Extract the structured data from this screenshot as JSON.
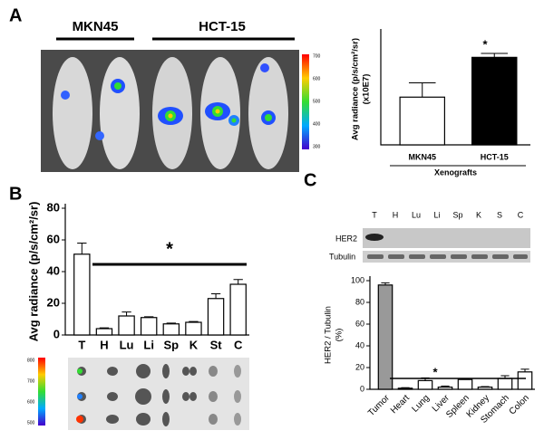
{
  "figure": {
    "panels": [
      "A",
      "B",
      "C"
    ],
    "mouse_groups": [
      "MKN45",
      "HCT-15"
    ],
    "mouse_colorbar": [
      "700",
      "600",
      "500",
      "400",
      "300"
    ],
    "organ_colorbar": [
      "800",
      "700",
      "600",
      "500"
    ],
    "blot_lanes": [
      "T",
      "H",
      "Lu",
      "Li",
      "Sp",
      "K",
      "S",
      "C"
    ],
    "blot_rows": [
      "HER2",
      "Tubulin"
    ]
  },
  "chart_data": [
    {
      "type": "bar",
      "categories": [
        "MKN45",
        "HCT-15"
      ],
      "values": [
        3,
        5.5
      ],
      "errors": [
        0.9,
        0.25
      ],
      "colors": [
        "#ffffff",
        "#000000"
      ],
      "ylim": [
        0,
        7
      ],
      "y_label": "Avg radiance (p/s/cm²/sr)",
      "y_label_unit": "(x10E7)",
      "x_label": "Xenografts",
      "annotation": "*"
    },
    {
      "type": "bar",
      "categories": [
        "T",
        "H",
        "Lu",
        "Li",
        "Sp",
        "K",
        "St",
        "C"
      ],
      "values": [
        51,
        4,
        12,
        11,
        7,
        8,
        23,
        32
      ],
      "errors": [
        7,
        0.5,
        2.5,
        0.5,
        0.5,
        0.5,
        3,
        3
      ],
      "colors": [
        "#ffffff",
        "#ffffff",
        "#ffffff",
        "#ffffff",
        "#ffffff",
        "#ffffff",
        "#ffffff",
        "#ffffff"
      ],
      "ylim": [
        0,
        80
      ],
      "yticks": [
        0,
        20,
        40,
        60,
        80
      ],
      "y_label": "Avg radiance (p/s/cm²/sr)",
      "annotation": "*"
    },
    {
      "type": "bar",
      "categories": [
        "Tumor",
        "Heart",
        "Lung",
        "Liver",
        "Spleen",
        "Kidney",
        "Stomach",
        "Colon"
      ],
      "values": [
        96,
        1,
        8,
        2,
        9,
        2,
        10,
        16
      ],
      "errors": [
        2,
        0.5,
        2.5,
        1,
        0,
        0.5,
        2.5,
        2.5
      ],
      "colors": [
        "#999999",
        "#ffffff",
        "#ffffff",
        "#ffffff",
        "#ffffff",
        "#ffffff",
        "#ffffff",
        "#ffffff"
      ],
      "ylim": [
        0,
        100
      ],
      "yticks": [
        0,
        20,
        40,
        60,
        80,
        100
      ],
      "label_rotation": -45,
      "y_label": "HER2 / Tubulin",
      "y_label_unit": "(%)",
      "annotation": "*"
    }
  ]
}
